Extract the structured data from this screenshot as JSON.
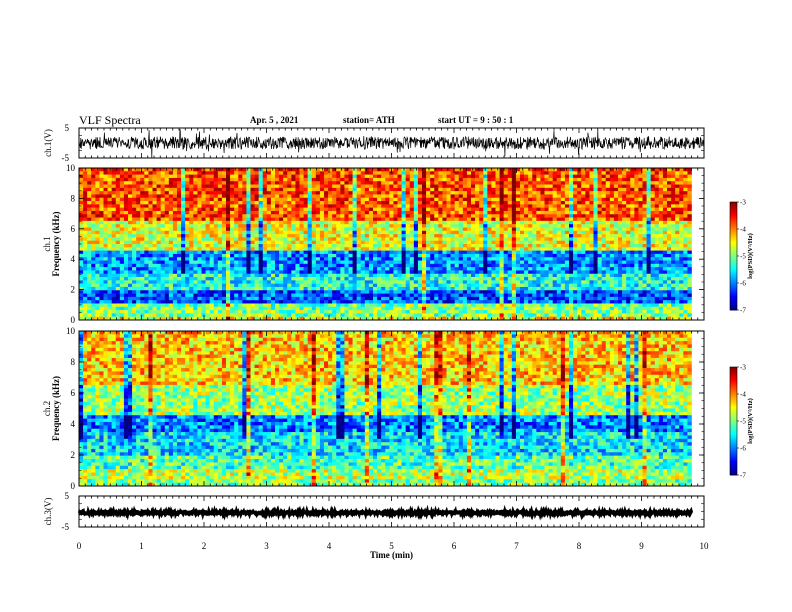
{
  "header": {
    "title": "VLF Spectra",
    "date": "Apr. 5  , 2021",
    "station": "station= ATH",
    "start": "start  UT  =   9  : 50 : 1"
  },
  "chart_data": [
    {
      "type": "line",
      "panel": "ch1-waveform",
      "ylabel": "ch.1(V)",
      "ylim": [
        -5,
        5
      ],
      "yticks": [
        "5",
        "-5"
      ],
      "x_unit": "min",
      "xlim": [
        0,
        10
      ],
      "y_typical_range": [
        -3,
        3
      ],
      "color": "#000000"
    },
    {
      "type": "heatmap",
      "panel": "ch1-spectrogram",
      "ylabel_line1": "ch.1",
      "ylabel_line2": "Frequency  (kHz)",
      "ylim": [
        0,
        10
      ],
      "yticks": [
        "0",
        "2",
        "4",
        "6",
        "8",
        "10"
      ],
      "xlim": [
        0,
        9.8
      ],
      "colorbar": {
        "label": "log(PSD)(V²/Hz)",
        "range": [
          -7,
          -3
        ],
        "ticks": [
          "-3",
          "-4",
          "-5",
          "-6",
          "-7"
        ]
      },
      "bands": [
        {
          "from": 0,
          "to": 0.3,
          "level": -4.5
        },
        {
          "from": 0.3,
          "to": 1.0,
          "level": -5.0
        },
        {
          "from": 1.0,
          "to": 2.0,
          "level": -6.2
        },
        {
          "from": 2.0,
          "to": 3.0,
          "level": -5.4
        },
        {
          "from": 3.0,
          "to": 4.5,
          "level": -5.9
        },
        {
          "from": 4.5,
          "to": 6.5,
          "level": -4.6
        },
        {
          "from": 6.5,
          "to": 10,
          "level": -3.8
        }
      ]
    },
    {
      "type": "heatmap",
      "panel": "ch2-spectrogram",
      "ylabel_line1": "ch.2",
      "ylabel_line2": "Frequency  (kHz)",
      "ylim": [
        0,
        10
      ],
      "yticks": [
        "0",
        "2",
        "4",
        "6",
        "8",
        "10"
      ],
      "xlim": [
        0,
        9.8
      ],
      "colorbar": {
        "label": "log(PSD)(V²/Hz)",
        "range": [
          -7,
          -3
        ],
        "ticks": [
          "-3",
          "-4",
          "-5",
          "-6",
          "-7"
        ]
      },
      "bands": [
        {
          "from": 0,
          "to": 0.5,
          "level": -5.0
        },
        {
          "from": 0.5,
          "to": 1.0,
          "level": -4.8
        },
        {
          "from": 1.0,
          "to": 2.0,
          "level": -5.2
        },
        {
          "from": 2.0,
          "to": 3.5,
          "level": -5.6
        },
        {
          "from": 3.5,
          "to": 4.5,
          "level": -6.0
        },
        {
          "from": 4.5,
          "to": 6.5,
          "level": -4.9
        },
        {
          "from": 6.5,
          "to": 10,
          "level": -4.3
        }
      ]
    },
    {
      "type": "line",
      "panel": "ch3-waveform",
      "ylabel": "ch.3(V)",
      "ylim": [
        -5,
        5
      ],
      "yticks": [
        "5",
        "-5"
      ],
      "xlim": [
        0,
        9.8
      ],
      "y_value_range": [
        -0.8,
        0
      ],
      "color": "#000000"
    }
  ],
  "x_axis": {
    "label": "Time  (min)",
    "ticks": [
      "0",
      "1",
      "2",
      "3",
      "4",
      "5",
      "6",
      "7",
      "8",
      "9",
      "10"
    ],
    "range": [
      0,
      10
    ]
  }
}
